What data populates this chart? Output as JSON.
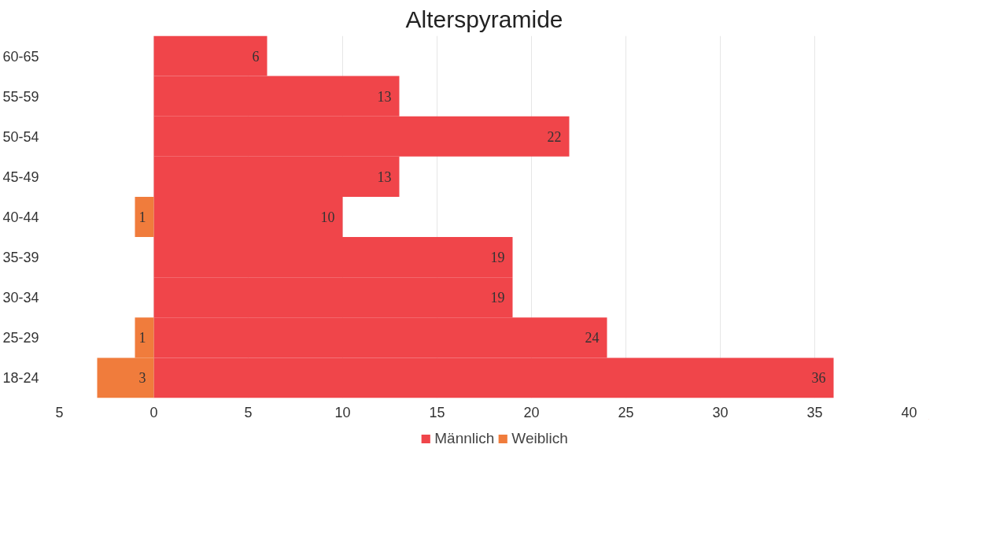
{
  "chart_data": {
    "type": "bar",
    "orientation": "horizontal",
    "title": "Alterspyramide",
    "categories": [
      "60-65",
      "55-59",
      "50-54",
      "45-49",
      "40-44",
      "35-39",
      "30-34",
      "25-29",
      "18-24"
    ],
    "series": [
      {
        "name": "Männlich",
        "color": "#f0454a",
        "values": [
          6,
          13,
          22,
          13,
          10,
          19,
          19,
          24,
          36
        ],
        "value_labels": [
          "6",
          "13",
          "22",
          "13",
          "10",
          "19",
          "19",
          "24",
          "36"
        ]
      },
      {
        "name": "Weiblich",
        "color": "#f07c3c",
        "values": [
          null,
          null,
          null,
          null,
          1,
          null,
          null,
          1,
          3
        ],
        "base": [
          null,
          null,
          null,
          null,
          -1,
          null,
          null,
          -1,
          -3
        ],
        "value_labels": [
          null,
          null,
          null,
          null,
          "1",
          null,
          null,
          "1",
          "3"
        ]
      }
    ],
    "xlim": [
      -5,
      40
    ],
    "xticks": [
      {
        "value": -5,
        "label": "5"
      },
      0,
      5,
      10,
      15,
      20,
      25,
      30,
      35,
      40
    ],
    "grid": "x",
    "legend": "bottom"
  }
}
